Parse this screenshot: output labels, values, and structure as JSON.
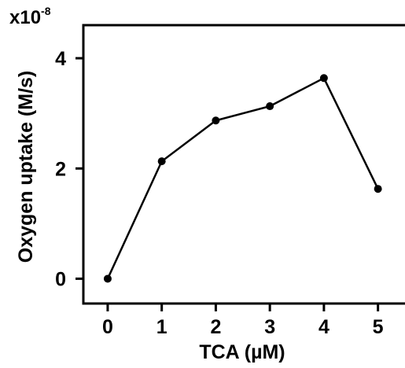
{
  "chart_data": {
    "type": "line",
    "title": "",
    "xlabel": "TCA (µM)",
    "ylabel": "Oxygen uptake (M/s)",
    "y_multiplier": {
      "base": "x10",
      "exponent": "-8"
    },
    "x": [
      0,
      1,
      2,
      3,
      4,
      5
    ],
    "series": [
      {
        "values": [
          0.0,
          2.13,
          2.87,
          3.13,
          3.64,
          1.63
        ]
      }
    ],
    "xlim": [
      -0.45,
      5.5
    ],
    "ylim": [
      -0.45,
      4.6
    ],
    "xticks": [
      0,
      1,
      2,
      3,
      4,
      5
    ],
    "yticks": [
      0,
      2,
      4
    ],
    "xtick_labels": [
      "0",
      "1",
      "2",
      "3",
      "4",
      "5"
    ],
    "ytick_labels": [
      "0",
      "2",
      "4"
    ],
    "grid": false,
    "legend": "none",
    "colors": {
      "line": "#000000",
      "marker": "#000000",
      "axis": "#000000"
    }
  }
}
